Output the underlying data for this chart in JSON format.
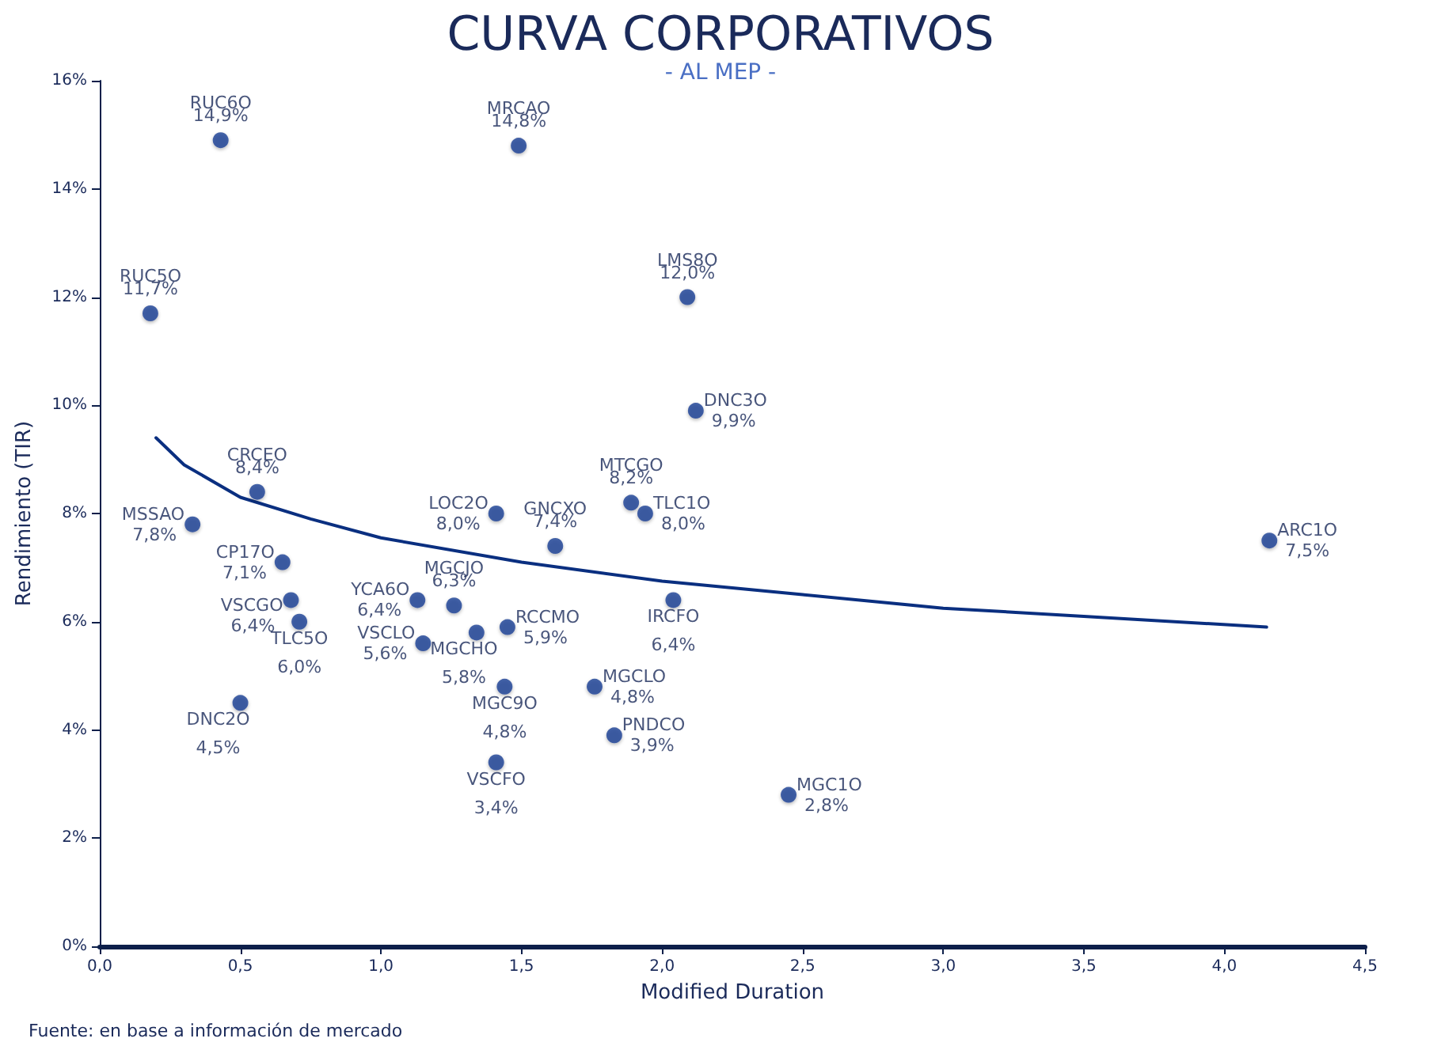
{
  "chart_data": {
    "type": "scatter",
    "title": "CURVA CORPORATIVOS",
    "subtitle": "- AL MEP -",
    "xlabel": "Modified Duration",
    "ylabel": "Rendimiento (TIR)",
    "xlim": [
      0,
      4.5
    ],
    "ylim": [
      0,
      16
    ],
    "xticks": [
      {
        "value": 0,
        "label": "0,0"
      },
      {
        "value": 0.5,
        "label": "0,5"
      },
      {
        "value": 1,
        "label": "1,0"
      },
      {
        "value": 1.5,
        "label": "1,5"
      },
      {
        "value": 2,
        "label": "2,0"
      },
      {
        "value": 2.5,
        "label": "2,5"
      },
      {
        "value": 3,
        "label": "3,0"
      },
      {
        "value": 3.5,
        "label": "3,5"
      },
      {
        "value": 4,
        "label": "4,0"
      },
      {
        "value": 4.5,
        "label": "4,5"
      }
    ],
    "yticks": [
      {
        "value": 0,
        "label": "0%"
      },
      {
        "value": 2,
        "label": "2%"
      },
      {
        "value": 4,
        "label": "4%"
      },
      {
        "value": 6,
        "label": "6%"
      },
      {
        "value": 8,
        "label": "8%"
      },
      {
        "value": 10,
        "label": "10%"
      },
      {
        "value": 12,
        "label": "12%"
      },
      {
        "value": 14,
        "label": "14%"
      },
      {
        "value": 16,
        "label": "16%"
      }
    ],
    "grid": false,
    "marker": "circle",
    "series": [
      {
        "type": "scatter",
        "color": "#1c3f94",
        "x": [
          0.43,
          1.49,
          0.18,
          2.09,
          2.12,
          0.56,
          1.41,
          1.89,
          1.94,
          1.62,
          0.33,
          4.16,
          0.65,
          0.68,
          0.71,
          1.13,
          1.26,
          2.04,
          1.15,
          1.34,
          1.45,
          1.76,
          1.44,
          0.5,
          1.83,
          1.41,
          2.45
        ],
        "values": [
          14.9,
          14.8,
          11.7,
          12.0,
          9.9,
          8.4,
          8.0,
          8.2,
          8.0,
          7.4,
          7.8,
          7.5,
          7.1,
          6.4,
          6.0,
          6.4,
          6.3,
          6.4,
          5.6,
          5.8,
          5.9,
          4.8,
          4.8,
          4.5,
          3.9,
          3.4,
          2.8
        ],
        "value_labels": [
          "14,9%",
          "14,8%",
          "11,7%",
          "12,0%",
          "9,9%",
          "8,4%",
          "8,0%",
          "8,2%",
          "8,0%",
          "7,4%",
          "7,8%",
          "7,5%",
          "7,1%",
          "6,4%",
          "6,0%",
          "6,4%",
          "6,3%",
          "6,4%",
          "5,6%",
          "5,8%",
          "5,9%",
          "4,8%",
          "4,8%",
          "4,5%",
          "3,9%",
          "3,4%",
          "2,8%"
        ]
      },
      {
        "type": "line",
        "color": "#0a2f80",
        "marker": "none",
        "line_style": "solid",
        "x": [
          0.2,
          0.3,
          0.5,
          0.75,
          1.0,
          1.5,
          2.0,
          2.5,
          3.0,
          3.5,
          4.15
        ],
        "values": [
          9.4,
          8.9,
          8.3,
          7.9,
          7.55,
          7.1,
          6.75,
          6.5,
          6.25,
          6.1,
          5.9
        ]
      }
    ],
    "annotations": [
      {
        "text": "RUC6O",
        "x": 0.43,
        "y": 14.9
      },
      {
        "text": "MRCAO",
        "x": 1.49,
        "y": 14.8
      },
      {
        "text": "RUC5O",
        "x": 0.18,
        "y": 11.7
      },
      {
        "text": "LMS8O",
        "x": 2.09,
        "y": 12.0
      },
      {
        "text": "DNC3O",
        "x": 2.12,
        "y": 9.9
      },
      {
        "text": "CRCEO",
        "x": 0.56,
        "y": 8.4
      },
      {
        "text": "LOC2O",
        "x": 1.41,
        "y": 8.0
      },
      {
        "text": "MTCGO",
        "x": 1.89,
        "y": 8.2
      },
      {
        "text": "TLC1O",
        "x": 1.94,
        "y": 8.0
      },
      {
        "text": "GNCXO",
        "x": 1.62,
        "y": 7.4
      },
      {
        "text": "MSSAO",
        "x": 0.33,
        "y": 7.8
      },
      {
        "text": "ARC1O",
        "x": 4.16,
        "y": 7.5
      },
      {
        "text": "CP17O",
        "x": 0.65,
        "y": 7.1
      },
      {
        "text": "VSCGO",
        "x": 0.68,
        "y": 6.4
      },
      {
        "text": "TLC5O",
        "x": 0.71,
        "y": 6.0
      },
      {
        "text": "YCA6O",
        "x": 1.13,
        "y": 6.4
      },
      {
        "text": "MGCJO",
        "x": 1.26,
        "y": 6.3
      },
      {
        "text": "IRCFO",
        "x": 2.04,
        "y": 6.4
      },
      {
        "text": "VSCLO",
        "x": 1.15,
        "y": 5.6
      },
      {
        "text": "MGCHO",
        "x": 1.34,
        "y": 5.8
      },
      {
        "text": "RCCMO",
        "x": 1.45,
        "y": 5.9
      },
      {
        "text": "MGCLO",
        "x": 1.76,
        "y": 4.8
      },
      {
        "text": "MGC9O",
        "x": 1.44,
        "y": 4.8
      },
      {
        "text": "DNC2O",
        "x": 0.5,
        "y": 4.5
      },
      {
        "text": "PNDCO",
        "x": 1.83,
        "y": 3.9
      },
      {
        "text": "VSCFO",
        "x": 1.41,
        "y": 3.4
      },
      {
        "text": "MGC1O",
        "x": 2.45,
        "y": 2.8
      },
      "Fuente: en base a información de mercado"
    ]
  }
}
